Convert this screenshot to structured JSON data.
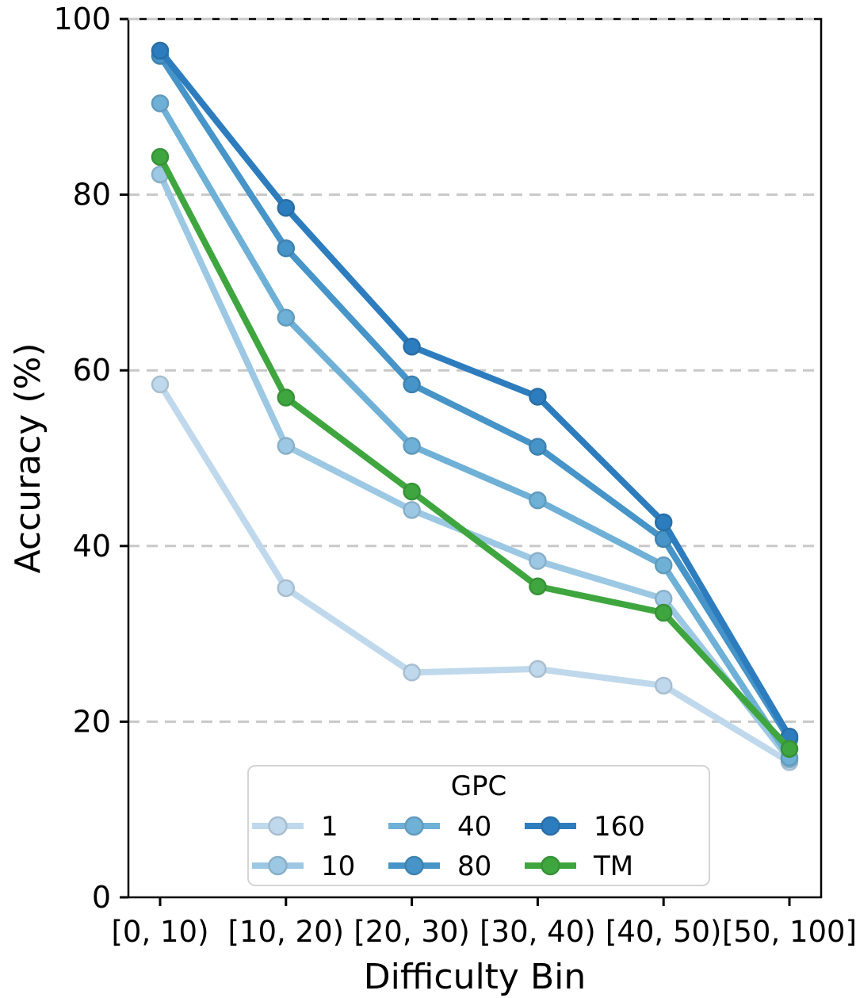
{
  "chart_data": {
    "type": "line",
    "title": "",
    "xlabel": "Difficulty Bin",
    "ylabel": "Accuracy (%)",
    "categories": [
      "[0, 10)",
      "[10, 20)",
      "[20, 30)",
      "[30, 40)",
      "[40, 50)",
      "[50, 100]"
    ],
    "series": [
      {
        "name": "1",
        "color": "#bfd8ec",
        "values": [
          58.4,
          35.2,
          25.6,
          26.0,
          24.1,
          15.4
        ]
      },
      {
        "name": "10",
        "color": "#9cc8e4",
        "values": [
          82.3,
          51.4,
          44.1,
          38.3,
          34.0,
          15.7
        ]
      },
      {
        "name": "40",
        "color": "#6fb0d7",
        "values": [
          90.4,
          66.0,
          51.4,
          45.2,
          37.8,
          15.9
        ]
      },
      {
        "name": "80",
        "color": "#4694c8",
        "values": [
          95.8,
          73.9,
          58.4,
          51.3,
          40.8,
          18.0
        ]
      },
      {
        "name": "160",
        "color": "#2d7dbe",
        "values": [
          96.4,
          78.5,
          62.7,
          57.0,
          42.7,
          18.3
        ]
      },
      {
        "name": "TM",
        "color": "#3fa63f",
        "values": [
          84.3,
          56.9,
          46.2,
          35.4,
          32.4,
          16.9
        ]
      }
    ],
    "ylim": [
      0,
      100
    ],
    "yticks": [
      0,
      20,
      40,
      60,
      80,
      100
    ],
    "grid": "horizontal-dashed",
    "grid_color": "#c8c8c8",
    "axis_color": "#000000",
    "legend": {
      "title": "GPC",
      "position": "lower-center",
      "columns": [
        [
          "1",
          "10"
        ],
        [
          "40",
          "80"
        ],
        [
          "160",
          "TM"
        ]
      ]
    }
  }
}
